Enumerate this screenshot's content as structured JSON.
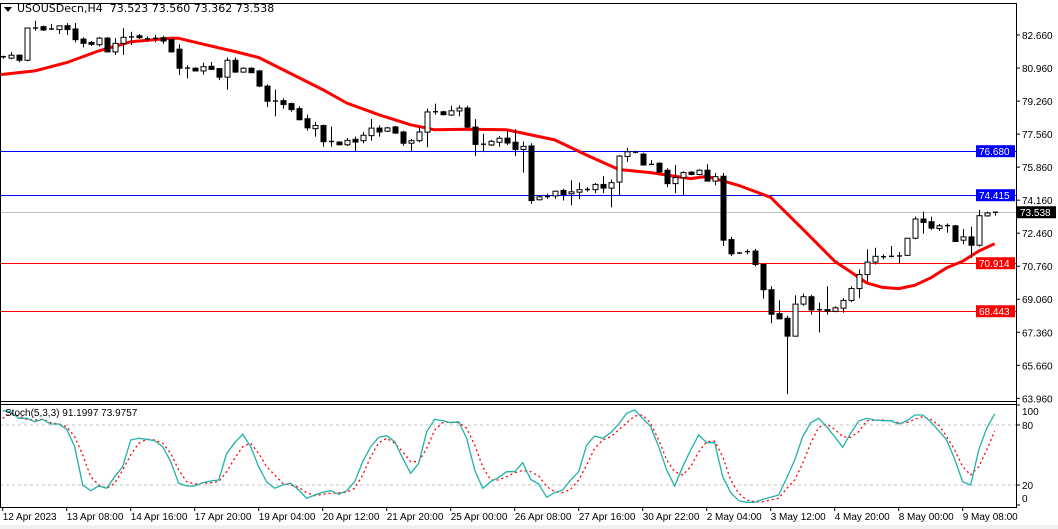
{
  "header": {
    "symbol": "USOUSDecn,H4",
    "ohlc": "73.523 73.560 73.362 73.538"
  },
  "indicator": {
    "label": "Stoch(5,3,3) 91.1997 73.9757"
  },
  "colors": {
    "bull_fill": "#ffffff",
    "bear_fill": "#000000",
    "ma_line": "#ff0000",
    "stoch_main": "#20b2aa",
    "stoch_signal": "#ff0000",
    "support_line": "#ff0000",
    "resistance_line": "#0000ff",
    "current_price_line": "#c0c0c0"
  },
  "chart_data": {
    "type": "candlestick",
    "price_axis": {
      "range": [
        63.96,
        82.66
      ],
      "ticks": [
        "82.660",
        "80.960",
        "79.260",
        "77.560",
        "75.860",
        "74.160",
        "72.460",
        "70.760",
        "69.060",
        "67.360",
        "65.660",
        "63.960"
      ]
    },
    "time_labels": [
      {
        "bar": 0,
        "label": "12 Apr 2023"
      },
      {
        "bar": 8,
        "label": "13 Apr 08:00"
      },
      {
        "bar": 16,
        "label": "14 Apr 16:00"
      },
      {
        "bar": 24,
        "label": "17 Apr 20:00"
      },
      {
        "bar": 32,
        "label": "19 Apr 04:00"
      },
      {
        "bar": 40,
        "label": "20 Apr 12:00"
      },
      {
        "bar": 48,
        "label": "21 Apr 20:00"
      },
      {
        "bar": 56,
        "label": "25 Apr 00:00"
      },
      {
        "bar": 64,
        "label": "26 Apr 08:00"
      },
      {
        "bar": 72,
        "label": "27 Apr 16:00"
      },
      {
        "bar": 80,
        "label": "30 Apr 22:00"
      },
      {
        "bar": 88,
        "label": "2 May 04:00"
      },
      {
        "bar": 96,
        "label": "3 May 12:00"
      },
      {
        "bar": 104,
        "label": "4 May 20:00"
      },
      {
        "bar": 112,
        "label": "8 May 00:00"
      },
      {
        "bar": 120,
        "label": "9 May 08:00"
      }
    ],
    "levels": [
      {
        "price": 76.68,
        "label": "76.680",
        "kind": "resistance"
      },
      {
        "price": 74.415,
        "label": "74.415",
        "kind": "resistance"
      },
      {
        "price": 73.538,
        "label": "73.538",
        "kind": "current"
      },
      {
        "price": 70.914,
        "label": "70.914",
        "kind": "support"
      },
      {
        "price": 68.443,
        "label": "68.443",
        "kind": "support"
      }
    ],
    "candles_ohlc": [
      [
        81.5,
        81.6,
        81.44,
        81.54
      ],
      [
        81.47,
        81.78,
        81.41,
        81.62
      ],
      [
        81.62,
        81.66,
        81.26,
        81.36
      ],
      [
        81.36,
        83.04,
        81.3,
        83.02
      ],
      [
        83.0,
        83.4,
        82.88,
        83.02
      ],
      [
        83.09,
        83.14,
        82.87,
        82.92
      ],
      [
        82.97,
        83.23,
        82.92,
        82.97
      ],
      [
        82.94,
        83.14,
        82.71,
        83.13
      ],
      [
        83.14,
        83.27,
        82.66,
        82.94
      ],
      [
        82.97,
        83.28,
        82.28,
        82.42
      ],
      [
        82.45,
        82.54,
        82.02,
        82.23
      ],
      [
        82.28,
        82.35,
        82.1,
        82.18
      ],
      [
        82.16,
        82.56,
        82.07,
        82.5
      ],
      [
        82.5,
        82.56,
        81.78,
        81.79
      ],
      [
        81.79,
        82.5,
        81.64,
        82.23
      ],
      [
        82.23,
        83.01,
        81.64,
        82.54
      ],
      [
        82.56,
        82.83,
        82.14,
        82.55
      ],
      [
        82.62,
        82.71,
        82.45,
        82.52
      ],
      [
        82.45,
        82.59,
        82.33,
        82.46
      ],
      [
        82.48,
        82.66,
        82.28,
        82.49
      ],
      [
        82.52,
        82.62,
        82.21,
        82.35
      ],
      [
        82.42,
        82.45,
        81.76,
        81.79
      ],
      [
        81.93,
        82.19,
        80.6,
        80.95
      ],
      [
        80.95,
        81.1,
        80.43,
        80.96
      ],
      [
        80.95,
        81.0,
        80.79,
        80.81
      ],
      [
        80.81,
        81.24,
        80.63,
        81.03
      ],
      [
        81.05,
        81.27,
        80.86,
        80.89
      ],
      [
        80.93,
        80.96,
        80.34,
        80.49
      ],
      [
        80.49,
        81.5,
        79.85,
        81.36
      ],
      [
        81.36,
        81.5,
        80.72,
        80.75
      ],
      [
        80.75,
        81.0,
        80.72,
        80.95
      ],
      [
        80.95,
        81.0,
        80.7,
        80.72
      ],
      [
        80.81,
        80.86,
        79.98,
        80.03
      ],
      [
        80.03,
        80.12,
        78.96,
        79.25
      ],
      [
        79.25,
        79.85,
        78.47,
        79.26
      ],
      [
        79.28,
        79.39,
        78.87,
        79.08
      ],
      [
        79.13,
        79.18,
        78.71,
        78.82
      ],
      [
        78.87,
        78.99,
        78.26,
        78.3
      ],
      [
        78.35,
        78.56,
        77.74,
        77.88
      ],
      [
        77.84,
        78.18,
        77.43,
        78.0
      ],
      [
        78.0,
        78.05,
        76.91,
        77.17
      ],
      [
        77.17,
        77.95,
        76.91,
        77.18
      ],
      [
        77.15,
        77.19,
        76.99,
        77.01
      ],
      [
        77.01,
        77.36,
        76.95,
        77.24
      ],
      [
        77.29,
        77.43,
        76.65,
        77.15
      ],
      [
        77.22,
        77.66,
        77.09,
        77.5
      ],
      [
        77.48,
        78.33,
        77.22,
        77.87
      ],
      [
        77.87,
        78.0,
        77.43,
        77.67
      ],
      [
        77.71,
        77.93,
        77.67,
        77.88
      ],
      [
        77.93,
        77.98,
        77.57,
        77.61
      ],
      [
        77.67,
        77.73,
        76.96,
        77.09
      ],
      [
        77.09,
        77.31,
        76.65,
        77.22
      ],
      [
        77.22,
        77.92,
        77.14,
        77.67
      ],
      [
        77.66,
        78.87,
        76.88,
        78.7
      ],
      [
        78.7,
        79.13,
        78.56,
        78.71
      ],
      [
        78.71,
        78.76,
        78.52,
        78.56
      ],
      [
        78.54,
        79.02,
        78.5,
        78.76
      ],
      [
        78.75,
        79.04,
        78.47,
        78.9
      ],
      [
        78.9,
        79.02,
        77.87,
        77.92
      ],
      [
        77.92,
        78.33,
        76.44,
        77.03
      ],
      [
        77.03,
        77.57,
        76.63,
        77.04
      ],
      [
        77.0,
        77.26,
        76.95,
        77.19
      ],
      [
        77.14,
        77.46,
        76.91,
        77.35
      ],
      [
        77.35,
        77.77,
        77.0,
        77.1
      ],
      [
        77.14,
        77.81,
        76.44,
        76.77
      ],
      [
        76.77,
        77.17,
        75.58,
        76.93
      ],
      [
        76.95,
        77.09,
        73.97,
        74.14
      ],
      [
        74.18,
        74.4,
        74.14,
        74.33
      ],
      [
        74.34,
        74.49,
        74.23,
        74.35
      ],
      [
        74.38,
        74.66,
        74.23,
        74.62
      ],
      [
        74.66,
        74.75,
        74.14,
        74.45
      ],
      [
        74.49,
        75.18,
        73.9,
        74.59
      ],
      [
        74.57,
        75.07,
        74.21,
        74.7
      ],
      [
        74.7,
        74.83,
        74.59,
        74.71
      ],
      [
        74.7,
        75.04,
        74.52,
        74.97
      ],
      [
        74.97,
        75.39,
        74.52,
        74.78
      ],
      [
        74.78,
        75.22,
        73.79,
        75.06
      ],
      [
        75.09,
        76.48,
        74.36,
        76.43
      ],
      [
        76.41,
        76.86,
        76.13,
        76.65
      ],
      [
        76.62,
        76.7,
        76.57,
        76.63
      ],
      [
        76.53,
        76.6,
        75.94,
        75.97
      ],
      [
        75.99,
        76.22,
        75.97,
        76.0
      ],
      [
        76.06,
        76.11,
        75.59,
        75.61
      ],
      [
        75.7,
        75.8,
        74.83,
        75.01
      ],
      [
        75.01,
        75.96,
        74.52,
        75.32
      ],
      [
        75.32,
        75.65,
        74.4,
        75.58
      ],
      [
        75.6,
        75.65,
        75.44,
        75.48
      ],
      [
        75.48,
        75.75,
        75.44,
        75.7
      ],
      [
        75.7,
        76.01,
        75.14,
        75.14
      ],
      [
        75.14,
        75.56,
        74.92,
        75.37
      ],
      [
        75.39,
        75.56,
        71.8,
        72.1
      ],
      [
        72.13,
        72.27,
        71.28,
        71.4
      ],
      [
        71.44,
        71.49,
        71.39,
        71.43
      ],
      [
        71.5,
        71.63,
        71.37,
        71.51
      ],
      [
        71.54,
        71.65,
        70.76,
        70.85
      ],
      [
        70.85,
        70.85,
        69.09,
        69.55
      ],
      [
        69.55,
        69.73,
        67.82,
        68.29
      ],
      [
        68.32,
        69.0,
        68.05,
        68.05
      ],
      [
        68.08,
        68.22,
        64.18,
        67.16
      ],
      [
        67.16,
        69.26,
        67.16,
        68.81
      ],
      [
        68.81,
        69.34,
        68.72,
        69.19
      ],
      [
        69.19,
        69.29,
        68.27,
        68.51
      ],
      [
        68.51,
        68.89,
        67.35,
        68.52
      ],
      [
        68.53,
        69.72,
        68.27,
        68.44
      ],
      [
        68.44,
        68.69,
        68.39,
        68.62
      ],
      [
        68.6,
        69.12,
        68.37,
        69.0
      ],
      [
        69.0,
        69.73,
        68.91,
        69.61
      ],
      [
        69.61,
        70.59,
        69.12,
        70.33
      ],
      [
        70.33,
        71.63,
        69.98,
        70.97
      ],
      [
        70.97,
        71.71,
        70.85,
        71.27
      ],
      [
        71.24,
        71.37,
        71.11,
        71.25
      ],
      [
        71.27,
        71.8,
        71.22,
        71.22
      ],
      [
        71.28,
        71.49,
        70.88,
        71.29
      ],
      [
        71.32,
        72.22,
        71.3,
        72.2
      ],
      [
        72.2,
        73.31,
        72.15,
        73.19
      ],
      [
        73.19,
        73.57,
        72.44,
        73.01
      ],
      [
        73.05,
        73.31,
        72.63,
        72.72
      ],
      [
        72.7,
        72.93,
        72.58,
        72.84
      ],
      [
        72.84,
        72.96,
        72.49,
        72.85
      ],
      [
        72.84,
        72.89,
        72.01,
        72.03
      ],
      [
        72.1,
        72.67,
        71.89,
        72.27
      ],
      [
        72.27,
        72.79,
        71.19,
        71.84
      ],
      [
        71.84,
        73.66,
        71.77,
        73.36
      ],
      [
        73.35,
        73.57,
        73.31,
        73.5
      ],
      [
        73.523,
        73.56,
        73.362,
        73.538
      ]
    ],
    "moving_average": [
      [
        0,
        80.63
      ],
      [
        4,
        80.81
      ],
      [
        8,
        81.24
      ],
      [
        12,
        81.84
      ],
      [
        16,
        82.31
      ],
      [
        21,
        82.49
      ],
      [
        22,
        82.49
      ],
      [
        25,
        82.19
      ],
      [
        29,
        81.81
      ],
      [
        32,
        81.5
      ],
      [
        40,
        79.85
      ],
      [
        43,
        79.16
      ],
      [
        47,
        78.56
      ],
      [
        51,
        78.04
      ],
      [
        54,
        77.78
      ],
      [
        58,
        77.81
      ],
      [
        63,
        77.78
      ],
      [
        65,
        77.61
      ],
      [
        69,
        77.26
      ],
      [
        73,
        76.48
      ],
      [
        77,
        75.74
      ],
      [
        81,
        75.58
      ],
      [
        86,
        75.27
      ],
      [
        88,
        75.39
      ],
      [
        92,
        74.92
      ],
      [
        96,
        74.3
      ],
      [
        100,
        72.67
      ],
      [
        104,
        71.02
      ],
      [
        106,
        70.47
      ],
      [
        108,
        69.9
      ],
      [
        110,
        69.67
      ],
      [
        112,
        69.61
      ],
      [
        114,
        69.78
      ],
      [
        116,
        70.16
      ],
      [
        118,
        70.68
      ],
      [
        120,
        71.02
      ],
      [
        122,
        71.54
      ],
      [
        124,
        71.92
      ]
    ],
    "stochastic": {
      "levels": [
        20,
        80
      ],
      "axis_labels": [
        "100",
        "80",
        "20",
        "0"
      ],
      "range": [
        0,
        100
      ],
      "main": [
        94.3,
        93.3,
        86.7,
        86.7,
        83.3,
        85.7,
        81,
        81,
        75.7,
        58.3,
        20,
        14.3,
        19,
        16.7,
        28.3,
        38.3,
        65,
        66.7,
        65.7,
        64.3,
        58.3,
        43.3,
        21.7,
        19,
        19,
        22.3,
        24,
        25,
        51.7,
        62.3,
        70.7,
        58.3,
        38.3,
        23,
        16.7,
        20,
        21.7,
        15,
        6.7,
        10,
        12.7,
        14.3,
        10.7,
        14.3,
        23.3,
        43.3,
        58.3,
        67.7,
        69.3,
        63.3,
        46.7,
        31.7,
        41.7,
        73.3,
        85.7,
        84.3,
        82.3,
        83.3,
        66.7,
        35,
        16.7,
        23.3,
        27.7,
        33.3,
        33.3,
        42.3,
        25.5,
        21,
        7.7,
        12.3,
        15,
        25,
        33.3,
        60,
        69,
        66.7,
        72.3,
        81,
        91.7,
        95,
        86.7,
        78.3,
        58.3,
        35,
        19,
        38.3,
        55,
        70,
        62.3,
        62.3,
        28.3,
        12.3,
        4.3,
        2.7,
        2.7,
        5.7,
        7.7,
        10,
        27,
        45,
        68.3,
        82.3,
        86.7,
        78.3,
        68.3,
        57.7,
        71.7,
        84,
        86.7,
        85,
        84.3,
        84.3,
        81,
        84,
        90,
        90,
        83.3,
        74.3,
        65,
        45.7,
        23.3,
        20,
        55,
        76.7,
        91.2
      ],
      "signal": [
        86.7,
        91.7,
        89,
        85.7,
        85,
        85.7,
        82.3,
        81,
        78.3,
        68.3,
        50,
        28.3,
        20,
        16.7,
        21.7,
        35,
        50,
        61.7,
        65.7,
        65,
        61.7,
        51.7,
        35,
        23.3,
        21,
        21.7,
        22.3,
        23.3,
        33.3,
        46.7,
        58.3,
        61.7,
        51.7,
        38.3,
        30,
        21.7,
        20,
        17.7,
        12.3,
        9.3,
        10.7,
        11.7,
        12.3,
        12.7,
        16.7,
        30,
        48.3,
        62.3,
        66.7,
        61.7,
        53.3,
        43.3,
        43.3,
        56.7,
        75,
        82.3,
        83,
        82.3,
        76.7,
        60,
        38.3,
        25,
        25,
        28.3,
        32.3,
        34.6,
        33.3,
        29,
        18.3,
        13.3,
        12.3,
        15.7,
        25,
        40,
        56.7,
        65,
        68.3,
        75,
        82.3,
        89,
        90,
        81.7,
        65,
        45,
        33.3,
        30,
        38.3,
        53.3,
        63.3,
        64,
        48.3,
        25,
        11.7,
        5,
        3.3,
        3.3,
        5,
        6.7,
        16.5,
        25,
        41.7,
        61.7,
        77.7,
        81,
        75.7,
        68.3,
        67.7,
        73.3,
        84.3,
        85,
        85,
        84,
        82.3,
        82.3,
        85.7,
        88.3,
        85.7,
        80,
        68.3,
        55,
        38.3,
        30,
        38.3,
        55,
        74
      ]
    }
  }
}
